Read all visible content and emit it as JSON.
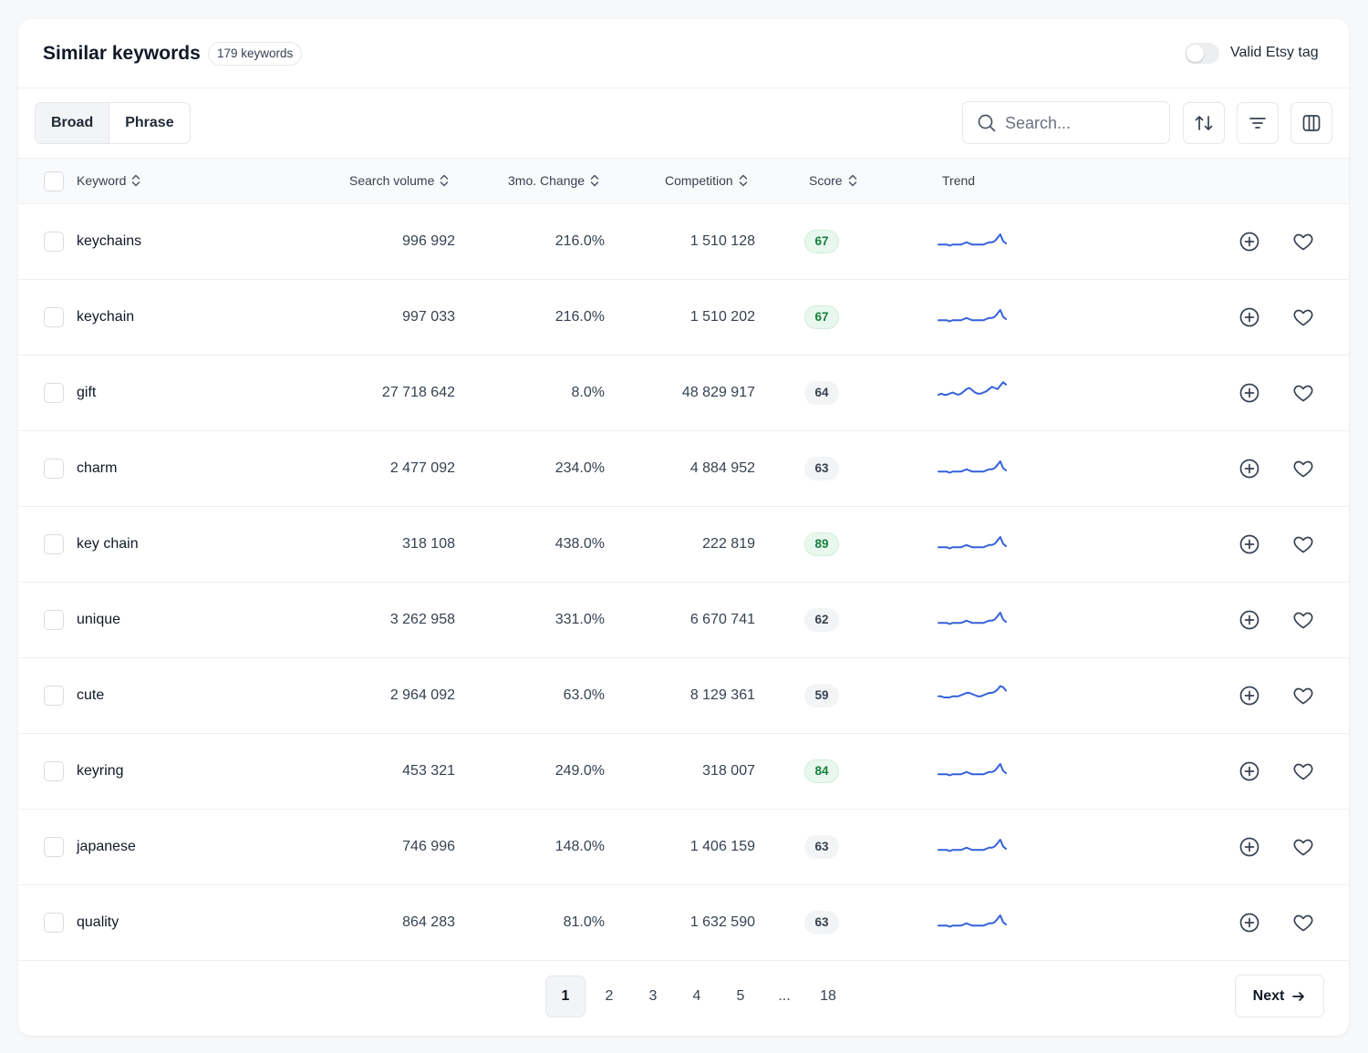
{
  "header": {
    "title": "Similar keywords",
    "count_badge": "179 keywords",
    "toggle_label": "Valid Etsy tag",
    "toggle_on": false
  },
  "toolbar": {
    "segments": [
      "Broad",
      "Phrase"
    ],
    "active_segment": "Broad",
    "search_placeholder": "Search..."
  },
  "columns": [
    "Keyword",
    "Search volume",
    "3mo. Change",
    "Competition",
    "Score",
    "Trend"
  ],
  "rows": [
    {
      "keyword": "keychains",
      "volume": "996 992",
      "change": "216.0%",
      "competition": "1 510 128",
      "score": "67",
      "score_style": "green",
      "trend": [
        3,
        3,
        3,
        3,
        2,
        3,
        3,
        3,
        3,
        4,
        5,
        4,
        3,
        3,
        3,
        3,
        3,
        4,
        5,
        5,
        6,
        9,
        12,
        6,
        4
      ]
    },
    {
      "keyword": "keychain",
      "volume": "997 033",
      "change": "216.0%",
      "competition": "1 510 202",
      "score": "67",
      "score_style": "green",
      "trend": [
        3,
        3,
        3,
        3,
        2,
        3,
        3,
        3,
        3,
        4,
        5,
        4,
        3,
        3,
        3,
        3,
        3,
        4,
        5,
        5,
        6,
        9,
        12,
        6,
        4
      ]
    },
    {
      "keyword": "gift",
      "volume": "27 718 642",
      "change": "8.0%",
      "competition": "48 829 917",
      "score": "64",
      "score_style": "gray",
      "trend": [
        4,
        5,
        4,
        4,
        5,
        6,
        5,
        4,
        5,
        7,
        9,
        10,
        8,
        6,
        5,
        5,
        6,
        7,
        9,
        11,
        10,
        9,
        12,
        15,
        13
      ]
    },
    {
      "keyword": "charm",
      "volume": "2 477 092",
      "change": "234.0%",
      "competition": "4 884 952",
      "score": "63",
      "score_style": "gray",
      "trend": [
        3,
        3,
        3,
        3,
        2,
        3,
        3,
        3,
        3,
        4,
        5,
        4,
        3,
        3,
        3,
        3,
        3,
        4,
        5,
        5,
        6,
        9,
        12,
        6,
        4
      ]
    },
    {
      "keyword": "key chain",
      "volume": "318 108",
      "change": "438.0%",
      "competition": "222 819",
      "score": "89",
      "score_style": "green",
      "trend": [
        3,
        3,
        3,
        3,
        2,
        3,
        3,
        3,
        3,
        4,
        5,
        4,
        3,
        3,
        3,
        3,
        3,
        4,
        5,
        5,
        6,
        9,
        12,
        6,
        4
      ]
    },
    {
      "keyword": "unique",
      "volume": "3 262 958",
      "change": "331.0%",
      "competition": "6 670 741",
      "score": "62",
      "score_style": "gray",
      "trend": [
        3,
        3,
        3,
        3,
        2,
        3,
        3,
        3,
        3,
        4,
        5,
        4,
        3,
        3,
        3,
        3,
        3,
        4,
        5,
        5,
        6,
        9,
        12,
        6,
        4
      ]
    },
    {
      "keyword": "cute",
      "volume": "2 964 092",
      "change": "63.0%",
      "competition": "8 129 361",
      "score": "59",
      "score_style": "gray",
      "trend": [
        5,
        5,
        4,
        4,
        4,
        5,
        5,
        5,
        6,
        7,
        8,
        8,
        7,
        6,
        5,
        5,
        6,
        7,
        8,
        8,
        9,
        11,
        14,
        13,
        10
      ]
    },
    {
      "keyword": "keyring",
      "volume": "453 321",
      "change": "249.0%",
      "competition": "318 007",
      "score": "84",
      "score_style": "green",
      "trend": [
        3,
        3,
        3,
        3,
        2,
        3,
        3,
        3,
        3,
        4,
        5,
        4,
        3,
        3,
        3,
        3,
        3,
        4,
        5,
        5,
        6,
        9,
        12,
        6,
        4
      ]
    },
    {
      "keyword": "japanese",
      "volume": "746 996",
      "change": "148.0%",
      "competition": "1 406 159",
      "score": "63",
      "score_style": "gray",
      "trend": [
        3,
        3,
        3,
        3,
        2,
        3,
        3,
        3,
        3,
        4,
        5,
        4,
        3,
        3,
        3,
        3,
        3,
        4,
        5,
        5,
        6,
        9,
        12,
        6,
        4
      ]
    },
    {
      "keyword": "quality",
      "volume": "864 283",
      "change": "81.0%",
      "competition": "1 632 590",
      "score": "63",
      "score_style": "gray",
      "trend": [
        3,
        3,
        3,
        3,
        2,
        3,
        3,
        3,
        3,
        4,
        5,
        4,
        3,
        3,
        3,
        3,
        3,
        4,
        5,
        5,
        6,
        9,
        12,
        6,
        4
      ]
    }
  ],
  "pagination": {
    "pages": [
      "1",
      "2",
      "3",
      "4",
      "5",
      "...",
      "18"
    ],
    "current": "1",
    "next_label": "Next"
  },
  "colors": {
    "trend_line": "#3461d9",
    "score_green_bg": "#e9f8ee",
    "score_green_text": "#15803d",
    "score_gray_bg": "#f3f4f6"
  }
}
